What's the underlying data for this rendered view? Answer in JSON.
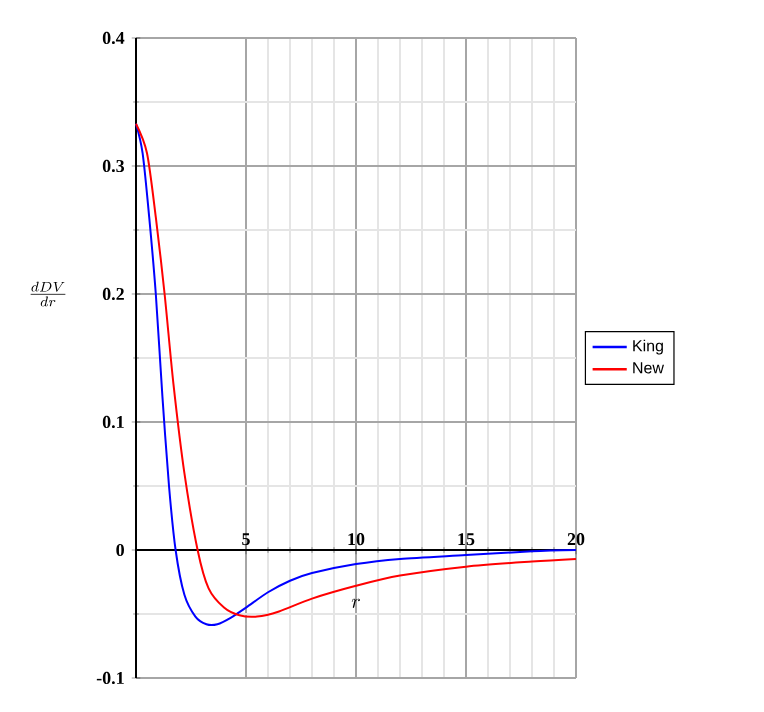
{
  "chart_data": {
    "type": "line",
    "xlabel": "r",
    "ylabel": "\\frac{dDV}{dr}",
    "xlim": [
      0,
      20
    ],
    "ylim": [
      -0.1,
      0.4
    ],
    "xticks": [
      5,
      10,
      15,
      20
    ],
    "yticks": [
      -0.1,
      0,
      0.1,
      0.2,
      0.3,
      0.4
    ],
    "grid": true,
    "legend": "right",
    "line_style": "solid",
    "series": [
      {
        "name": "King",
        "color": "#0000ff",
        "x": [
          0,
          0.3,
          0.6,
          0.9,
          1.2,
          1.5,
          1.8,
          2.2,
          2.7,
          3.2,
          3.7,
          4.3,
          5,
          6,
          7,
          8,
          10,
          12,
          15,
          18,
          20
        ],
        "values": [
          0.333,
          0.31,
          0.26,
          0.2,
          0.12,
          0.05,
          0,
          -0.035,
          -0.052,
          -0.058,
          -0.058,
          -0.053,
          -0.045,
          -0.033,
          -0.024,
          -0.018,
          -0.011,
          -0.007,
          -0.004,
          -0.001,
          0
        ]
      },
      {
        "name": "New",
        "color": "#ff0000",
        "x": [
          0,
          0.5,
          0.9,
          1.3,
          1.7,
          2.2,
          2.8,
          3.3,
          4,
          4.7,
          5.5,
          6.5,
          8,
          10,
          12,
          15,
          18,
          20
        ],
        "values": [
          0.333,
          0.31,
          0.26,
          0.2,
          0.13,
          0.06,
          0,
          -0.03,
          -0.045,
          -0.051,
          -0.052,
          -0.048,
          -0.038,
          -0.028,
          -0.02,
          -0.013,
          -0.009,
          -0.007
        ]
      }
    ]
  }
}
